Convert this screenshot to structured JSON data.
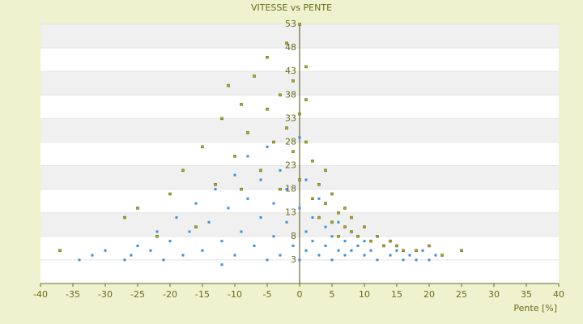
{
  "chart_data": {
    "type": "scatter",
    "title": "VITESSE vs PENTE",
    "x_label": "Pente [%]",
    "xlim": [
      -40,
      40
    ],
    "xticks": [
      -40,
      -35,
      -30,
      -25,
      -20,
      -15,
      -10,
      -5,
      0,
      5,
      10,
      15,
      20,
      25,
      30,
      35,
      40
    ],
    "ylim": [
      -2,
      53
    ],
    "yticks": [
      3,
      8,
      13,
      18,
      23,
      28,
      33,
      38,
      43,
      48,
      53
    ],
    "grid": true,
    "series": [
      {
        "color": "#3b8fd8",
        "x": [
          -34,
          -32,
          -27,
          -26,
          -25,
          -23,
          -22,
          -21,
          -20,
          -19,
          -18,
          -17,
          -16,
          -15,
          -14,
          -13,
          -12,
          -11,
          -10,
          -10,
          -9,
          -8,
          -8,
          -7,
          -6,
          -6,
          -5,
          -4,
          -4,
          -3,
          -3,
          -2,
          -2,
          -1,
          -1,
          0,
          0,
          0,
          1,
          1,
          1,
          2,
          2,
          3,
          3,
          4,
          4,
          5,
          5,
          6,
          6,
          7,
          7,
          8,
          8,
          9,
          10,
          10,
          11,
          12,
          13,
          14,
          15,
          16,
          17,
          18,
          19,
          20,
          21,
          -30,
          -12,
          -5
        ],
        "values": [
          3,
          4,
          3,
          4,
          6,
          5,
          9,
          3,
          7,
          12,
          4,
          9,
          15,
          5,
          11,
          18,
          7,
          14,
          21,
          4,
          9,
          16,
          25,
          6,
          12,
          20,
          27,
          8,
          15,
          22,
          4,
          11,
          18,
          26,
          6,
          14,
          29,
          3,
          9,
          20,
          5,
          12,
          7,
          16,
          4,
          10,
          6,
          8,
          3,
          11,
          5,
          7,
          4,
          9,
          5,
          6,
          4,
          7,
          5,
          3,
          6,
          4,
          5,
          3,
          4,
          3,
          5,
          3,
          4,
          5,
          2,
          3
        ]
      },
      {
        "color": "#a8a820",
        "x": [
          -37,
          -27,
          -25,
          -20,
          -18,
          -15,
          -13,
          -12,
          -11,
          -10,
          -9,
          -8,
          -7,
          -6,
          -5,
          -5,
          -4,
          -3,
          -3,
          -2,
          -2,
          -1,
          -1,
          0,
          0,
          0,
          1,
          1,
          2,
          2,
          3,
          3,
          4,
          4,
          5,
          5,
          6,
          7,
          7,
          8,
          8,
          9,
          10,
          11,
          12,
          13,
          14,
          15,
          16,
          18,
          20,
          22,
          25,
          -22,
          -16,
          1,
          -9,
          6
        ],
        "values": [
          5,
          12,
          14,
          17,
          22,
          27,
          19,
          33,
          40,
          25,
          36,
          30,
          42,
          22,
          35,
          46,
          28,
          38,
          18,
          49,
          31,
          26,
          41,
          53,
          34,
          20,
          44,
          28,
          24,
          16,
          19,
          12,
          15,
          22,
          11,
          17,
          13,
          10,
          14,
          9,
          12,
          8,
          10,
          7,
          8,
          6,
          7,
          6,
          5,
          5,
          6,
          4,
          5,
          8,
          10,
          37,
          18,
          8
        ]
      }
    ]
  }
}
